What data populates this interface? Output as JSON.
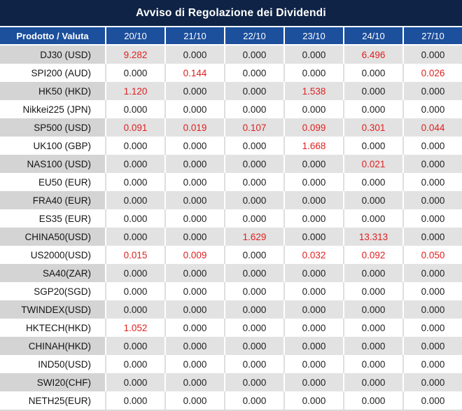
{
  "title": "Avviso di Regolazione dei Dividendi",
  "table": {
    "product_header": "Prodotto / Valuta",
    "date_columns": [
      "20/10",
      "21/10",
      "22/10",
      "23/10",
      "24/10",
      "27/10"
    ],
    "rows": [
      {
        "product": "DJ30 (USD)",
        "values": [
          "9.282",
          "0.000",
          "0.000",
          "0.000",
          "6.496",
          "0.000"
        ]
      },
      {
        "product": "SPI200 (AUD)",
        "values": [
          "0.000",
          "0.144",
          "0.000",
          "0.000",
          "0.000",
          "0.026"
        ]
      },
      {
        "product": "HK50 (HKD)",
        "values": [
          "1.120",
          "0.000",
          "0.000",
          "1.538",
          "0.000",
          "0.000"
        ]
      },
      {
        "product": "Nikkei225 (JPN)",
        "values": [
          "0.000",
          "0.000",
          "0.000",
          "0.000",
          "0.000",
          "0.000"
        ]
      },
      {
        "product": "SP500 (USD)",
        "values": [
          "0.091",
          "0.019",
          "0.107",
          "0.099",
          "0.301",
          "0.044"
        ]
      },
      {
        "product": "UK100 (GBP)",
        "values": [
          "0.000",
          "0.000",
          "0.000",
          "1.668",
          "0.000",
          "0.000"
        ]
      },
      {
        "product": "NAS100 (USD)",
        "values": [
          "0.000",
          "0.000",
          "0.000",
          "0.000",
          "0.021",
          "0.000"
        ]
      },
      {
        "product": "EU50 (EUR)",
        "values": [
          "0.000",
          "0.000",
          "0.000",
          "0.000",
          "0.000",
          "0.000"
        ]
      },
      {
        "product": "FRA40 (EUR)",
        "values": [
          "0.000",
          "0.000",
          "0.000",
          "0.000",
          "0.000",
          "0.000"
        ]
      },
      {
        "product": "ES35 (EUR)",
        "values": [
          "0.000",
          "0.000",
          "0.000",
          "0.000",
          "0.000",
          "0.000"
        ]
      },
      {
        "product": "CHINA50(USD)",
        "values": [
          "0.000",
          "0.000",
          "1.629",
          "0.000",
          "13.313",
          "0.000"
        ]
      },
      {
        "product": "US2000(USD)",
        "values": [
          "0.015",
          "0.009",
          "0.000",
          "0.032",
          "0.092",
          "0.050"
        ]
      },
      {
        "product": "SA40(ZAR)",
        "values": [
          "0.000",
          "0.000",
          "0.000",
          "0.000",
          "0.000",
          "0.000"
        ]
      },
      {
        "product": "SGP20(SGD)",
        "values": [
          "0.000",
          "0.000",
          "0.000",
          "0.000",
          "0.000",
          "0.000"
        ]
      },
      {
        "product": "TWINDEX(USD)",
        "values": [
          "0.000",
          "0.000",
          "0.000",
          "0.000",
          "0.000",
          "0.000"
        ]
      },
      {
        "product": "HKTECH(HKD)",
        "values": [
          "1.052",
          "0.000",
          "0.000",
          "0.000",
          "0.000",
          "0.000"
        ]
      },
      {
        "product": "CHINAH(HKD)",
        "values": [
          "0.000",
          "0.000",
          "0.000",
          "0.000",
          "0.000",
          "0.000"
        ]
      },
      {
        "product": "IND50(USD)",
        "values": [
          "0.000",
          "0.000",
          "0.000",
          "0.000",
          "0.000",
          "0.000"
        ]
      },
      {
        "product": "SWI20(CHF)",
        "values": [
          "0.000",
          "0.000",
          "0.000",
          "0.000",
          "0.000",
          "0.000"
        ]
      },
      {
        "product": "NETH25(EUR)",
        "values": [
          "0.000",
          "0.000",
          "0.000",
          "0.000",
          "0.000",
          "0.000"
        ]
      }
    ]
  },
  "colors": {
    "title_bg": "#0e2345",
    "header_bg": "#1c4f9c",
    "header_text": "#ffffff",
    "alt_product_bg": "#d4d4d4",
    "alt_value_bg": "#e2e2e2",
    "row_white_bg": "#ffffff",
    "grid_on_alt": "#ffffff",
    "grid_on_white": "#dedede",
    "bottom_border": "#d9d9d9",
    "value_red": "#e02020",
    "value_black": "#1f1f1f"
  }
}
